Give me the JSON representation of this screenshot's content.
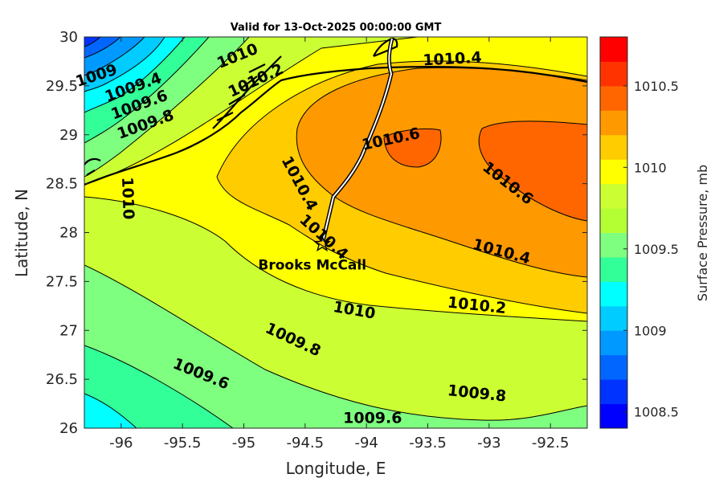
{
  "title": "Valid for 13-Oct-2025 00:00:00 GMT",
  "map": {
    "x_label": "Longitude, E",
    "y_label": "Latitude, N",
    "lon_range": [
      -96.3,
      -92.2
    ],
    "lat_range": [
      26.0,
      30.0
    ],
    "x_ticks": [
      "-96",
      "-95.5",
      "-95",
      "-94.5",
      "-94",
      "-93.5",
      "-93",
      "-92.5"
    ],
    "x_tick_values": [
      -96,
      -95.5,
      -95,
      -94.5,
      -94,
      -93.5,
      -93,
      -92.5
    ],
    "y_ticks": [
      "30",
      "29.5",
      "29",
      "28.5",
      "28",
      "27.5",
      "27",
      "26.5",
      "26"
    ],
    "y_tick_values": [
      30,
      29.5,
      29,
      28.5,
      28,
      27.5,
      27,
      26.5,
      26
    ],
    "contour_labels": [
      {
        "text": "1009",
        "lon": -96.2,
        "lat": 29.6
      },
      {
        "text": "1009.4",
        "lon": -95.9,
        "lat": 29.48
      },
      {
        "text": "1009.6",
        "lon": -95.85,
        "lat": 29.3
      },
      {
        "text": "1009.8",
        "lon": -95.8,
        "lat": 29.1
      },
      {
        "text": "1010",
        "lon": -95.05,
        "lat": 29.8
      },
      {
        "text": "1010.2",
        "lon": -94.9,
        "lat": 29.55
      },
      {
        "text": "1010.4",
        "lon": -93.3,
        "lat": 29.77
      },
      {
        "text": "1010.6",
        "lon": -93.8,
        "lat": 28.95
      },
      {
        "text": "1010.4",
        "lon": -94.55,
        "lat": 28.5
      },
      {
        "text": "1010.6",
        "lon": -92.85,
        "lat": 28.5
      },
      {
        "text": "1010",
        "lon": -95.95,
        "lat": 28.35
      },
      {
        "text": "1010.4",
        "lon": -94.35,
        "lat": 27.95
      },
      {
        "text": "1010.4",
        "lon": -92.9,
        "lat": 27.8
      },
      {
        "text": "1010",
        "lon": -94.1,
        "lat": 27.2
      },
      {
        "text": "1010.2",
        "lon": -93.1,
        "lat": 27.25
      },
      {
        "text": "1009.8",
        "lon": -94.6,
        "lat": 26.9
      },
      {
        "text": "1009.6",
        "lon": -95.35,
        "lat": 26.55
      },
      {
        "text": "1009.8",
        "lon": -93.1,
        "lat": 26.35
      },
      {
        "text": "1009.6",
        "lon": -93.95,
        "lat": 26.1
      }
    ],
    "station": {
      "name": "Brooks McCall",
      "lon": -94.35,
      "lat": 27.87
    }
  },
  "colorbar": {
    "label": "Surface Pressure, mb",
    "ticks": [
      "1010.5",
      "1010",
      "1009.5",
      "1009",
      "1008.5"
    ],
    "tick_values": [
      1010.5,
      1010,
      1009.5,
      1009,
      1008.5
    ],
    "range": [
      1008.4,
      1010.8
    ],
    "colors": [
      "#0000ff",
      "#0033ff",
      "#0066ff",
      "#0099ff",
      "#00ccff",
      "#00ffff",
      "#33ff99",
      "#7fff7f",
      "#b4ff33",
      "#ccff33",
      "#ffff00",
      "#ffcc00",
      "#ff9900",
      "#ff6600",
      "#ff3300",
      "#ff0000"
    ]
  },
  "level_colors": {
    "c1008_8": "#0033ff",
    "c1009": "#0099ff",
    "c1009_2": "#00ccff",
    "c1009_4": "#00ffff",
    "c1009_6": "#33ff99",
    "c1009_8": "#7fff7f",
    "c1010": "#ccff33",
    "c1010_2": "#ffff00",
    "c1010_4": "#ffcc00",
    "c1010_6": "#ff9900",
    "c1010_8": "#ff6600"
  }
}
